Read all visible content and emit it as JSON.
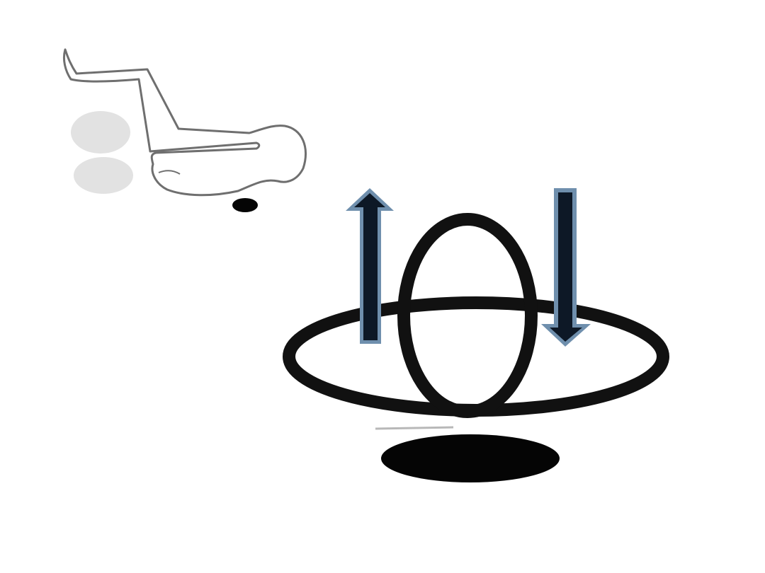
{
  "diagram": {
    "colors": {
      "background": "#ffffff",
      "figure_outline": "#6f6f6f",
      "feet_fill": "#e2e2e2",
      "ring_stroke": "#111111",
      "shadow_fill": "#050505",
      "arrow_fill": "#0d1826",
      "arrow_edge": "#6f8fad"
    },
    "icons": {
      "figure": "lying-person-legs-raised",
      "ring_large": "horizontal-ring",
      "ring_small": "vertical-ring",
      "arrow_left": "arrow-up",
      "arrow_right": "arrow-down"
    }
  }
}
